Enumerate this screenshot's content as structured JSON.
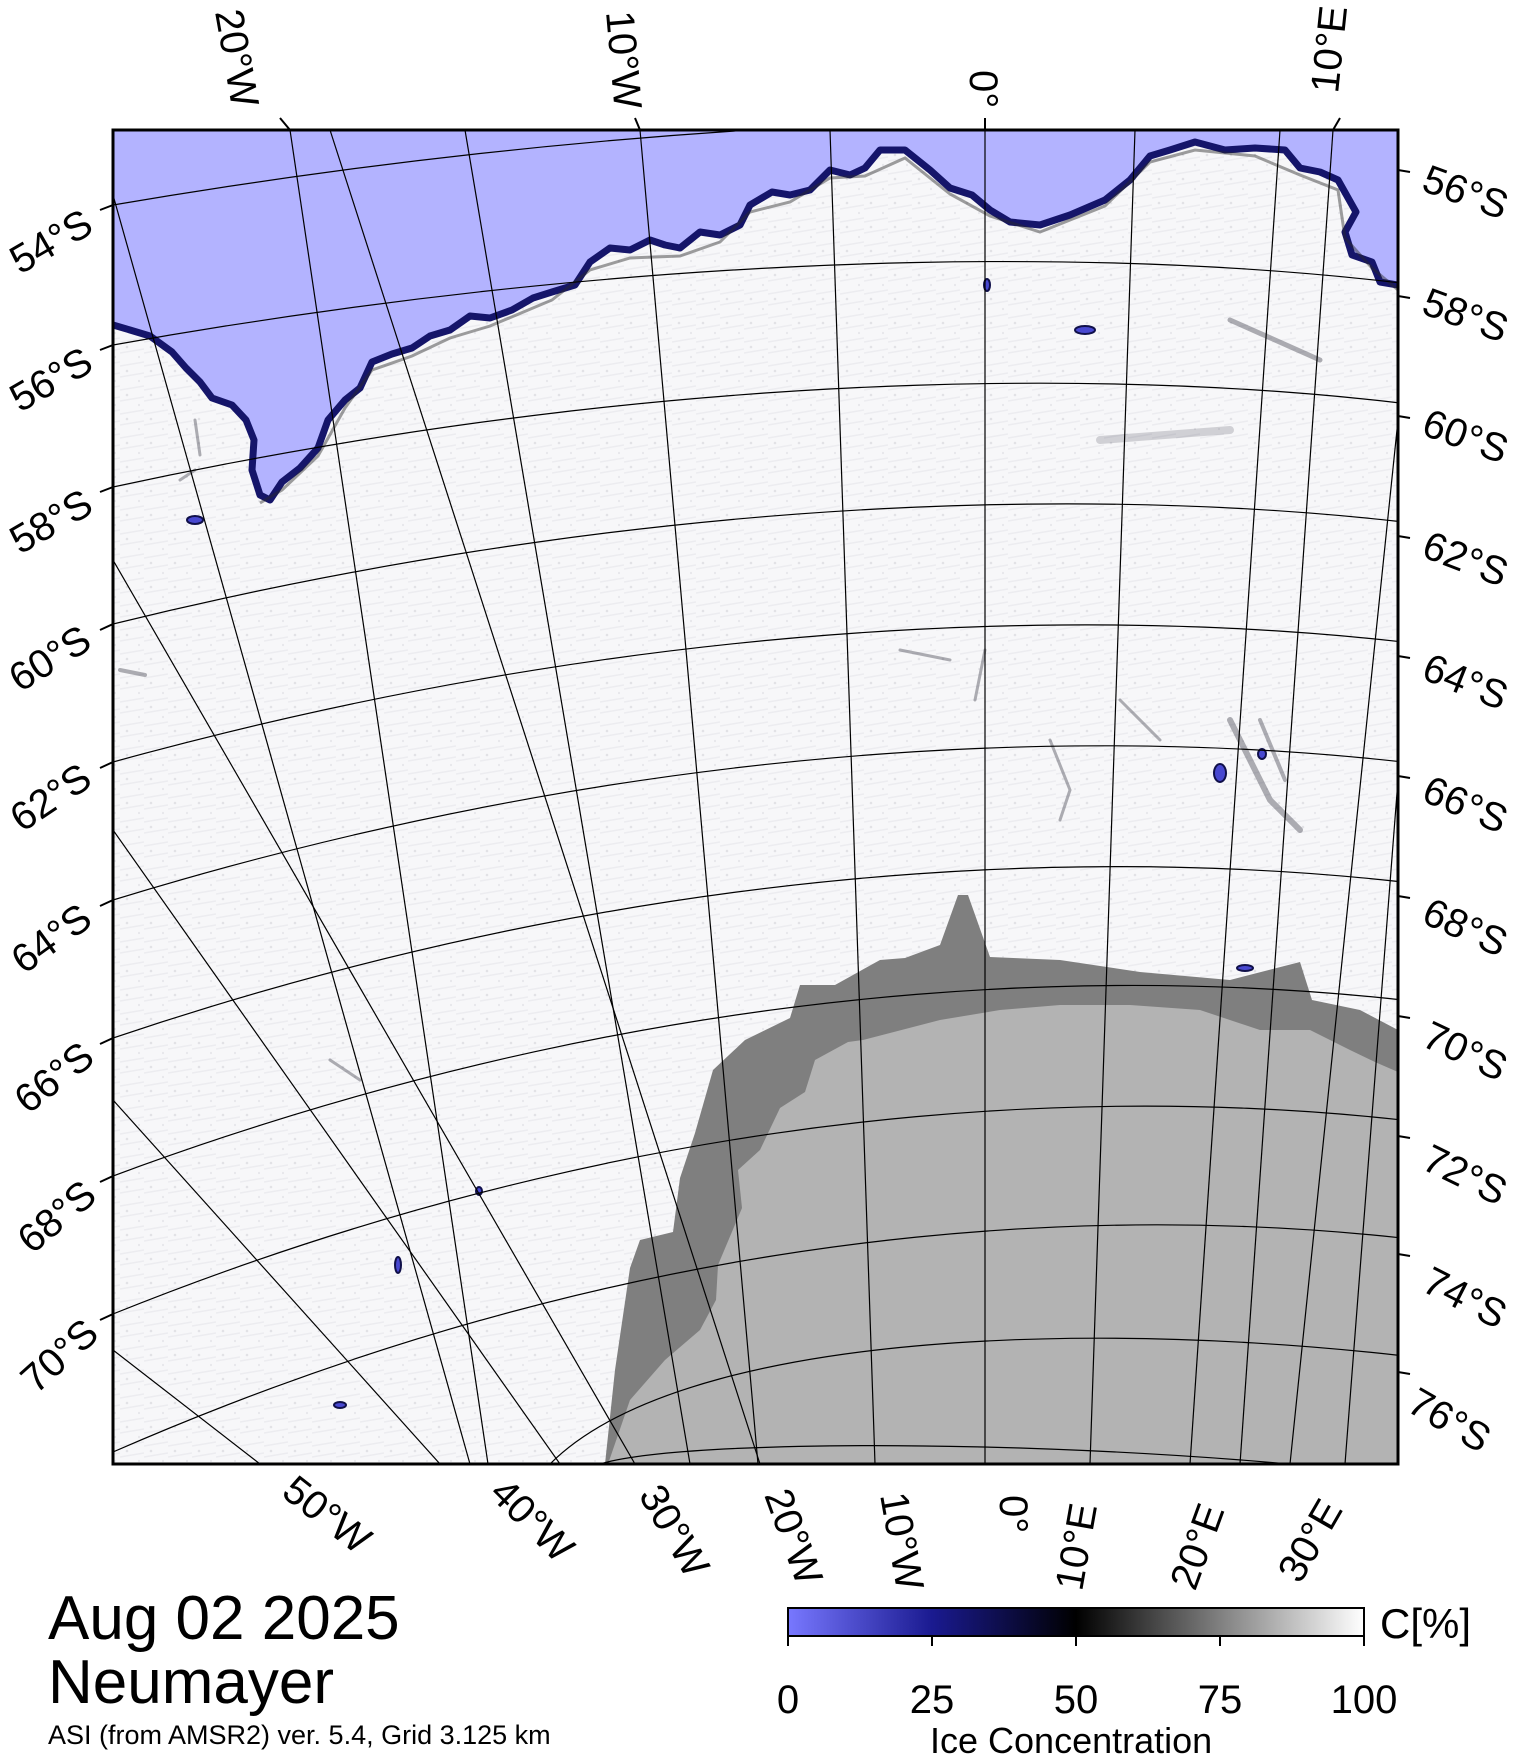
{
  "map": {
    "date": "Aug 02 2025",
    "station": "Neumayer",
    "source": "ASI (from AMSR2) ver. 5.4,  Grid 3.125 km",
    "colors": {
      "open_water": "#b3b3ff",
      "ice": "#ffffff",
      "land_ice_shelf": "#7f7f7f",
      "continent": "#b3b3b3",
      "coast_dark": "#1a1a6e"
    },
    "top_lon_labels": [
      "20°W",
      "10°W",
      "0°",
      "10°E"
    ],
    "bottom_lon_labels": [
      "50°W",
      "40°W",
      "30°W",
      "20°W",
      "10°W",
      "0°",
      "10°E",
      "20°E",
      "30°E"
    ],
    "left_lat_labels": [
      "54°S",
      "56°S",
      "58°S",
      "60°S",
      "62°S",
      "64°S",
      "66°S",
      "68°S",
      "70°S"
    ],
    "right_lat_labels": [
      "56°S",
      "58°S",
      "60°S",
      "62°S",
      "64°S",
      "66°S",
      "68°S",
      "70°S",
      "72°S",
      "74°S",
      "76°S"
    ]
  },
  "colorbar": {
    "ticks": [
      "0",
      "25",
      "50",
      "75",
      "100"
    ],
    "unit": "C[%]",
    "title": "Ice Concentration"
  }
}
